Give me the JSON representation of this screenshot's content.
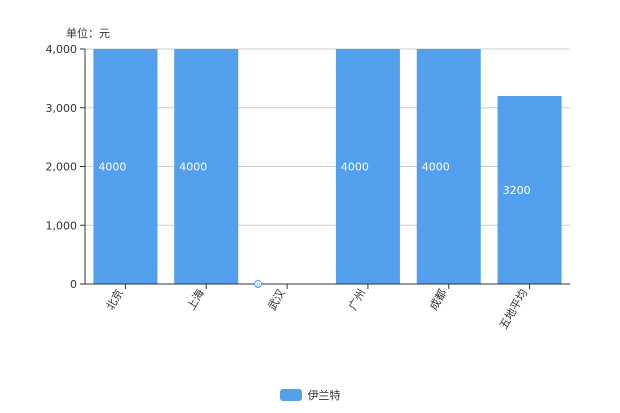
{
  "chart_data": {
    "type": "bar",
    "unit_label": "单位：元",
    "categories": [
      "北京",
      "上海",
      "武汉",
      "广州",
      "成都",
      "五地平均"
    ],
    "series": [
      {
        "name": "伊兰特",
        "values": [
          4000,
          4000,
          0,
          4000,
          4000,
          3200
        ],
        "color": "#529FEE"
      }
    ],
    "data_labels": [
      "4000",
      "4000",
      "0",
      "4000",
      "4000",
      "3200"
    ],
    "ylim": [
      0,
      4000
    ],
    "yticks": [
      0,
      1000,
      2000,
      3000,
      4000
    ],
    "ytick_labels": [
      "0",
      "1,000",
      "2,000",
      "3,000",
      "4,000"
    ],
    "grid": true,
    "legend_position": "bottom-center"
  }
}
